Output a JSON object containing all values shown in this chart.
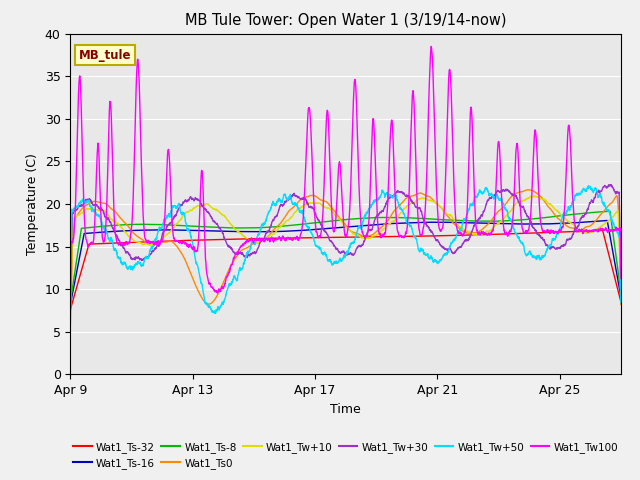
{
  "title": "MB Tule Tower: Open Water 1 (3/19/14-now)",
  "xlabel": "Time",
  "ylabel": "Temperature (C)",
  "ylim": [
    0,
    40
  ],
  "yticks": [
    0,
    5,
    10,
    15,
    20,
    25,
    30,
    35,
    40
  ],
  "xtick_labels": [
    "Apr 9",
    "Apr 13",
    "Apr 17",
    "Apr 21",
    "Apr 25"
  ],
  "xtick_positions": [
    0,
    4,
    8,
    12,
    16
  ],
  "bg_color": "#e8e8e8",
  "fig_bg_color": "#f0f0f0",
  "legend_label": "MB_tule",
  "series": [
    {
      "name": "Wat1_Ts-32",
      "color": "#ff0000"
    },
    {
      "name": "Wat1_Ts-16",
      "color": "#0000bb"
    },
    {
      "name": "Wat1_Ts-8",
      "color": "#00bb00"
    },
    {
      "name": "Wat1_Ts0",
      "color": "#ff8800"
    },
    {
      "name": "Wat1_Tw+10",
      "color": "#dddd00"
    },
    {
      "name": "Wat1_Tw+30",
      "color": "#9933cc"
    },
    {
      "name": "Wat1_Tw+50",
      "color": "#00ddff"
    },
    {
      "name": "Wat1_Tw100",
      "color": "#ff00ff"
    }
  ]
}
